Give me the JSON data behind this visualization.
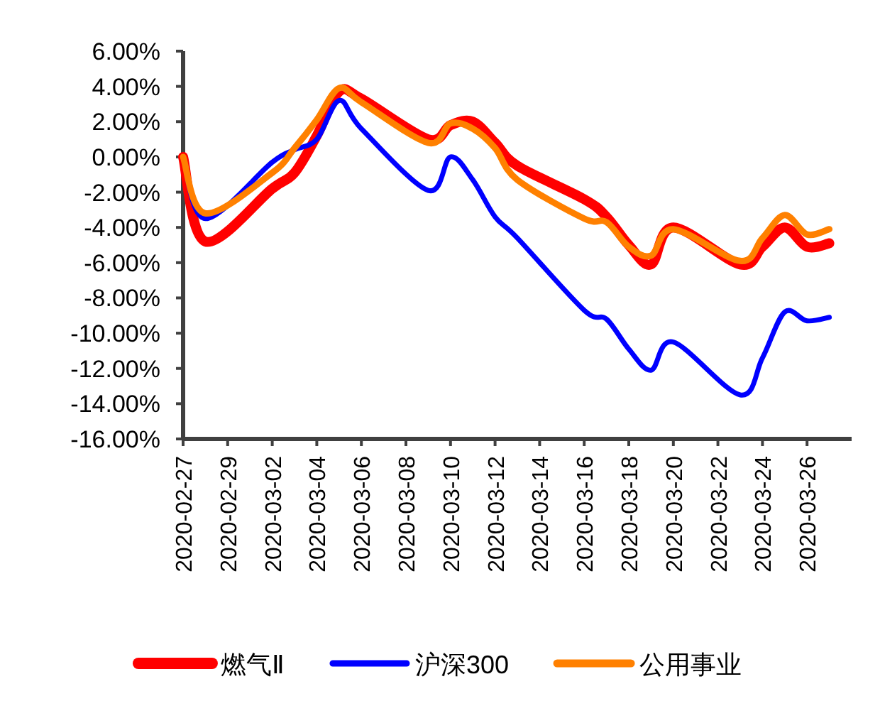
{
  "chart_data": {
    "type": "line",
    "legend": "bottom",
    "x": [
      "2020-02-27",
      "2020-02-28",
      "2020-03-02",
      "2020-03-03",
      "2020-03-04",
      "2020-03-05",
      "2020-03-06",
      "2020-03-09",
      "2020-03-10",
      "2020-03-11",
      "2020-03-12",
      "2020-03-13",
      "2020-03-16",
      "2020-03-17",
      "2020-03-18",
      "2020-03-19",
      "2020-03-20",
      "2020-03-23",
      "2020-03-24",
      "2020-03-25",
      "2020-03-26",
      "2020-03-27"
    ],
    "xlim": [
      "2020-02-27",
      "2020-03-28"
    ],
    "xticks": [
      "2020-02-27",
      "2020-02-29",
      "2020-03-02",
      "2020-03-04",
      "2020-03-06",
      "2020-03-08",
      "2020-03-10",
      "2020-03-12",
      "2020-03-14",
      "2020-03-16",
      "2020-03-18",
      "2020-03-20",
      "2020-03-22",
      "2020-03-24",
      "2020-03-26"
    ],
    "ylim": [
      -16,
      6
    ],
    "yticks": [
      {
        "value": -16,
        "label": "-16.00%"
      },
      {
        "value": -14,
        "label": "-14.00%"
      },
      {
        "value": -12,
        "label": "-12.00%"
      },
      {
        "value": -10,
        "label": "-10.00%"
      },
      {
        "value": -8,
        "label": "-8.00%"
      },
      {
        "value": -6,
        "label": "-6.00%"
      },
      {
        "value": -4,
        "label": "-4.00%"
      },
      {
        "value": -2,
        "label": "-2.00%"
      },
      {
        "value": 0,
        "label": "0.00%"
      },
      {
        "value": 2,
        "label": "2.00%"
      },
      {
        "value": 4,
        "label": "4.00%"
      },
      {
        "value": 6,
        "label": "6.00%"
      }
    ],
    "series": [
      {
        "name": "燃气Ⅱ",
        "color": "#ff0000",
        "values": [
          0,
          -4.8,
          -1.8,
          -0.9,
          1.2,
          3.7,
          3.3,
          1.0,
          1.8,
          2.0,
          0.8,
          -0.5,
          -2.4,
          -3.4,
          -5.0,
          -6.1,
          -4.0,
          -6.1,
          -5.1,
          -4.0,
          -5.1,
          -4.9
        ]
      },
      {
        "name": "沪深300",
        "color": "#0000ff",
        "values": [
          0,
          -3.5,
          -0.3,
          0.4,
          1.0,
          3.2,
          1.6,
          -1.9,
          0.0,
          -1.3,
          -3.4,
          -4.6,
          -8.7,
          -9.2,
          -10.9,
          -12.1,
          -10.5,
          -13.5,
          -11.4,
          -8.8,
          -9.3,
          -9.1
        ]
      },
      {
        "name": "公用事业",
        "color": "#ff8000",
        "values": [
          0,
          -3.2,
          -0.9,
          0.5,
          2.1,
          3.9,
          3.1,
          0.8,
          1.9,
          1.6,
          0.5,
          -1.3,
          -3.5,
          -3.7,
          -5.1,
          -5.6,
          -4.1,
          -5.9,
          -4.6,
          -3.3,
          -4.4,
          -4.1
        ]
      }
    ]
  }
}
